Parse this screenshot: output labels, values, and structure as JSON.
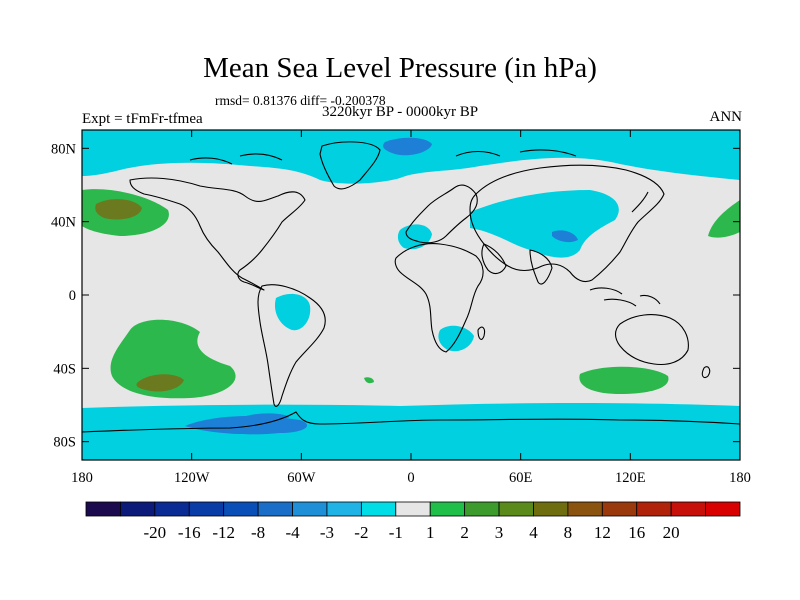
{
  "title": "Mean Sea Level Pressure (in hPa)",
  "stats": "rmsd= 0.81376 diff= -0.200378",
  "experiment": "Expt = tFmFr-tfmea",
  "period": "3220kyr BP - 0000kyr BP",
  "season": "ANN",
  "colors": {
    "background": "#e6e6e6",
    "cyan": "#00d0e0",
    "blue_mid": "#1e7fd6",
    "green": "#2db84d",
    "green_dark": "#4a8a2a",
    "olive": "#6b7a1e",
    "coast": "#000000"
  },
  "map": {
    "lat_ticks": [
      "80N",
      "40N",
      "0",
      "40S",
      "80S"
    ],
    "lat_values": [
      80,
      40,
      0,
      -40,
      -80
    ],
    "lon_ticks": [
      "180",
      "120W",
      "60W",
      "0",
      "60E",
      "120E",
      "180"
    ],
    "lon_values": [
      -180,
      -120,
      -60,
      0,
      60,
      120,
      180
    ],
    "lat_range": [
      -90,
      90
    ],
    "lon_range": [
      -180,
      180
    ]
  },
  "colorbar": {
    "colors": [
      "#1b0a4e",
      "#0c1a7a",
      "#0a2a94",
      "#0a3ca8",
      "#0a4fb8",
      "#1a6ec8",
      "#1f8fd8",
      "#1fb3e6",
      "#00dde6",
      "#e6e6e6",
      "#1fbf4a",
      "#3d9a2c",
      "#5a8a1c",
      "#6e6e10",
      "#8a5410",
      "#9a3a0c",
      "#b0220a",
      "#c8100a",
      "#d80000"
    ],
    "labels": [
      "-20",
      "-16",
      "-12",
      "-8",
      "-4",
      "-3",
      "-2",
      "-1",
      "1",
      "2",
      "3",
      "4",
      "8",
      "12",
      "16",
      "20"
    ]
  }
}
